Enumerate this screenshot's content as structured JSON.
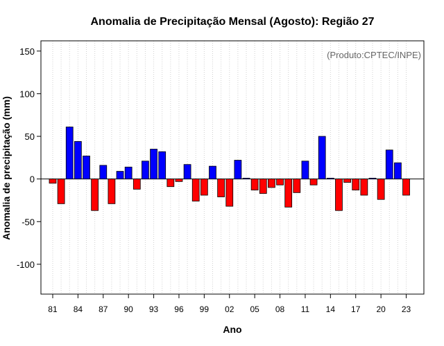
{
  "chart_data": {
    "type": "bar",
    "title": "Anomalia de Precipitação Mensal (Agosto): Região 27",
    "xlabel": "Ano",
    "ylabel": "Anomalia de precipitação (mm)",
    "credit": "(Produto:CPTEC/INPE)",
    "ylim": [
      -135,
      162
    ],
    "yticks": [
      -100,
      -50,
      0,
      50,
      100,
      150
    ],
    "xlim": [
      1979.6,
      2025.1
    ],
    "xticks": [
      1981,
      1984,
      1987,
      1990,
      1993,
      1996,
      1999,
      2002,
      2005,
      2008,
      2011,
      2014,
      2017,
      2020,
      2023
    ],
    "xtick_labels": [
      "81",
      "84",
      "87",
      "90",
      "93",
      "96",
      "99",
      "02",
      "05",
      "08",
      "11",
      "14",
      "17",
      "20",
      "23"
    ],
    "positive_color": "#0000ff",
    "negative_color": "#ff0000",
    "categories": [
      1981,
      1982,
      1983,
      1984,
      1985,
      1986,
      1987,
      1988,
      1989,
      1990,
      1991,
      1992,
      1993,
      1994,
      1995,
      1996,
      1997,
      1998,
      1999,
      2000,
      2001,
      2002,
      2003,
      2004,
      2005,
      2006,
      2007,
      2008,
      2009,
      2010,
      2011,
      2012,
      2013,
      2014,
      2015,
      2016,
      2017,
      2018,
      2019,
      2020,
      2021,
      2022,
      2023
    ],
    "values": [
      -5,
      -29,
      61,
      44,
      27,
      -37,
      16,
      -29,
      9,
      14,
      -12,
      21,
      35,
      32,
      -9,
      -3,
      17,
      -26,
      -19,
      15,
      -21,
      -32,
      22,
      1,
      -13,
      -17,
      -10,
      -7,
      -33,
      -16,
      21,
      -7,
      50,
      1,
      -37,
      -4,
      -13,
      -19,
      1,
      -24,
      34,
      19,
      -19
    ]
  }
}
